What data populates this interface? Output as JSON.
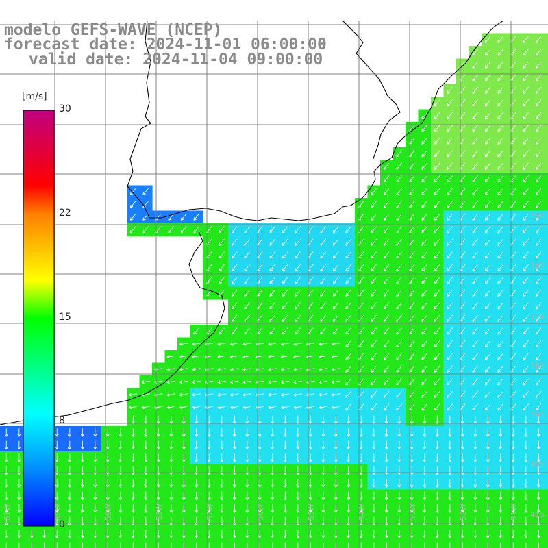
{
  "header": {
    "model_line": "modelo GEFS-WAVE (NCEP)",
    "forecast_line": "forecast date: 2024-11-01 06:00:00",
    "valid_line": "valid date: 2024-11-04 09:00:00"
  },
  "colorbar": {
    "unit": "[m/s]",
    "ticks": [
      "30",
      "22",
      "15",
      "8",
      "0"
    ],
    "tick_values": [
      30,
      22,
      15,
      8,
      0
    ],
    "range": [
      0,
      30
    ],
    "colors": [
      "#0000ff",
      "#0090ff",
      "#00ffff",
      "#00ff00",
      "#ffff00",
      "#ff8000",
      "#ff0000",
      "#c00080"
    ]
  },
  "map": {
    "lat_labels": [
      "35S",
      "36S",
      "37S",
      "38S",
      "39S",
      "40S",
      "41S"
    ],
    "lon_labels": [
      "61W",
      "60W",
      "59W",
      "58W",
      "57W",
      "56W",
      "55W",
      "54W",
      "53W",
      "52W",
      "51W"
    ],
    "land_color": "#ffffff",
    "grid_color": "#808080",
    "field": "wind speed (m/s) with direction arrows"
  }
}
